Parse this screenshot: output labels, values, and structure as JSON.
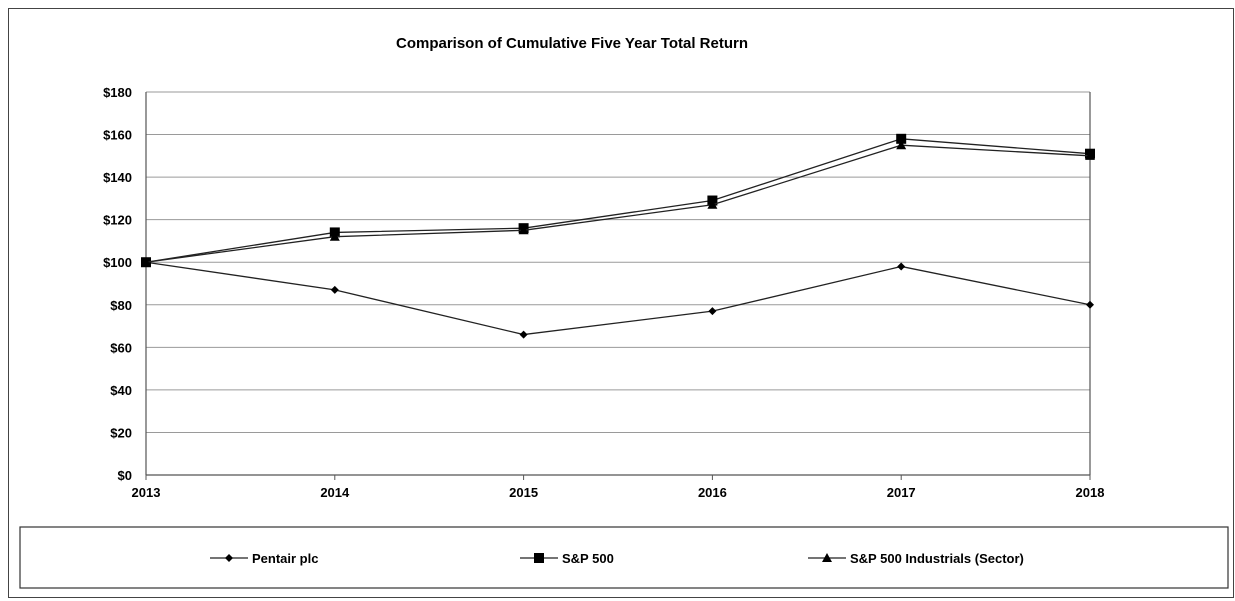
{
  "chart_data": {
    "type": "line",
    "title": "Comparison of Cumulative Five Year Total Return",
    "xlabel": "",
    "ylabel": "",
    "x": [
      "2013",
      "2014",
      "2015",
      "2016",
      "2017",
      "2018"
    ],
    "ylim": [
      0,
      180
    ],
    "y_ticks": [
      "$0",
      "$20",
      "$40",
      "$60",
      "$80",
      "$100",
      "$120",
      "$140",
      "$160",
      "$180"
    ],
    "grid": "horizontal",
    "legend_position": "bottom",
    "series": [
      {
        "name": "Pentair plc",
        "marker": "diamond",
        "values": [
          100,
          87,
          66,
          77,
          98,
          80
        ]
      },
      {
        "name": "S&P 500",
        "marker": "square",
        "values": [
          100,
          114,
          116,
          129,
          158,
          151
        ]
      },
      {
        "name": "S&P 500 Industrials (Sector)",
        "marker": "triangle",
        "values": [
          100,
          112,
          115,
          127,
          155,
          150
        ]
      }
    ]
  }
}
